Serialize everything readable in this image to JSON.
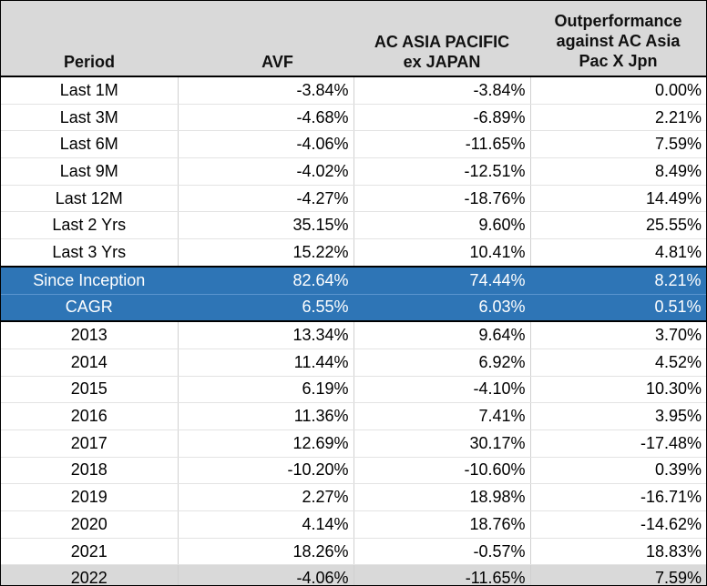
{
  "table": {
    "headers": [
      [
        "Period"
      ],
      [
        "AVF"
      ],
      [
        "AC ASIA PACIFIC",
        "ex JAPAN"
      ],
      [
        "Outperformance",
        "against AC Asia",
        "Pac X Jpn"
      ]
    ],
    "rows": [
      {
        "period": "Last 1M",
        "avf": "-3.84%",
        "bench": "-3.84%",
        "outperf": "0.00%"
      },
      {
        "period": "Last 3M",
        "avf": "-4.68%",
        "bench": "-6.89%",
        "outperf": "2.21%"
      },
      {
        "period": "Last 6M",
        "avf": "-4.06%",
        "bench": "-11.65%",
        "outperf": "7.59%"
      },
      {
        "period": "Last 9M",
        "avf": "-4.02%",
        "bench": "-12.51%",
        "outperf": "8.49%"
      },
      {
        "period": "Last 12M",
        "avf": "-4.27%",
        "bench": "-18.76%",
        "outperf": "14.49%"
      },
      {
        "period": "Last 2 Yrs",
        "avf": "35.15%",
        "bench": "9.60%",
        "outperf": "25.55%"
      },
      {
        "period": "Last 3 Yrs",
        "avf": "15.22%",
        "bench": "10.41%",
        "outperf": "4.81%"
      },
      {
        "period": "Since Inception",
        "avf": "82.64%",
        "bench": "74.44%",
        "outperf": "8.21%"
      },
      {
        "period": "CAGR",
        "avf": "6.55%",
        "bench": "6.03%",
        "outperf": "0.51%"
      },
      {
        "period": "2013",
        "avf": "13.34%",
        "bench": "9.64%",
        "outperf": "3.70%"
      },
      {
        "period": "2014",
        "avf": "11.44%",
        "bench": "6.92%",
        "outperf": "4.52%"
      },
      {
        "period": "2015",
        "avf": "6.19%",
        "bench": "-4.10%",
        "outperf": "10.30%"
      },
      {
        "period": "2016",
        "avf": "11.36%",
        "bench": "7.41%",
        "outperf": "3.95%"
      },
      {
        "period": "2017",
        "avf": "12.69%",
        "bench": "30.17%",
        "outperf": "-17.48%"
      },
      {
        "period": "2018",
        "avf": "-10.20%",
        "bench": "-10.60%",
        "outperf": "0.39%"
      },
      {
        "period": "2019",
        "avf": "2.27%",
        "bench": "18.98%",
        "outperf": "-16.71%"
      },
      {
        "period": "2020",
        "avf": "4.14%",
        "bench": "18.76%",
        "outperf": "-14.62%"
      },
      {
        "period": "2021",
        "avf": "18.26%",
        "bench": "-0.57%",
        "outperf": "18.83%"
      },
      {
        "period": "2022",
        "avf": "-4.06%",
        "bench": "-11.65%",
        "outperf": "7.59%"
      }
    ]
  },
  "colors": {
    "header_bg": "#d9d9d9",
    "highlight_bg": "#2e75b6",
    "highlight_text": "#ffffff",
    "last_row_bg": "#d9d9d9"
  }
}
